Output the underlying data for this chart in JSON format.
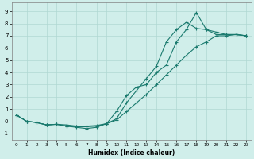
{
  "xlabel": "Humidex (Indice chaleur)",
  "bg_color": "#d0eeea",
  "grid_color": "#b0d8d2",
  "line_color": "#1a7a6e",
  "x_ticks": [
    0,
    1,
    2,
    3,
    4,
    5,
    6,
    7,
    8,
    9,
    10,
    11,
    12,
    13,
    14,
    15,
    16,
    17,
    18,
    19,
    20,
    21,
    22,
    23
  ],
  "y_ticks": [
    -1,
    0,
    1,
    2,
    3,
    4,
    5,
    6,
    7,
    8,
    9
  ],
  "xlim": [
    -0.5,
    23.5
  ],
  "ylim": [
    -1.5,
    9.7
  ],
  "series": [
    {
      "x": [
        0,
        1,
        2,
        3,
        4,
        5,
        6,
        7,
        8,
        9,
        10,
        11,
        12,
        13,
        14,
        15,
        16,
        17,
        18,
        19,
        20,
        21,
        22,
        23
      ],
      "y": [
        0.5,
        0.0,
        -0.1,
        -0.3,
        -0.25,
        -0.4,
        -0.5,
        -0.6,
        -0.5,
        -0.2,
        0.8,
        2.1,
        2.8,
        3.0,
        4.0,
        4.6,
        6.5,
        7.5,
        8.9,
        7.5,
        7.1,
        7.1,
        7.1,
        7.0
      ]
    },
    {
      "x": [
        0,
        1,
        2,
        3,
        4,
        5,
        6,
        7,
        8,
        9,
        10,
        11,
        12,
        13,
        14,
        15,
        16,
        17,
        18,
        19,
        20,
        21,
        22,
        23
      ],
      "y": [
        0.5,
        0.0,
        -0.1,
        -0.3,
        -0.25,
        -0.4,
        -0.45,
        -0.45,
        -0.4,
        -0.2,
        0.2,
        1.5,
        2.5,
        3.5,
        4.5,
        6.5,
        7.5,
        8.1,
        7.6,
        7.5,
        7.3,
        7.1,
        7.1,
        7.0
      ]
    },
    {
      "x": [
        0,
        1,
        2,
        3,
        4,
        5,
        6,
        7,
        8,
        9,
        10,
        11,
        12,
        13,
        14,
        15,
        16,
        17,
        18,
        19,
        20,
        21,
        22,
        23
      ],
      "y": [
        0.5,
        0.0,
        -0.1,
        -0.3,
        -0.25,
        -0.3,
        -0.4,
        -0.4,
        -0.35,
        -0.2,
        0.1,
        0.8,
        1.5,
        2.2,
        3.0,
        3.8,
        4.6,
        5.4,
        6.1,
        6.5,
        7.0,
        7.0,
        7.1,
        7.0
      ]
    }
  ]
}
